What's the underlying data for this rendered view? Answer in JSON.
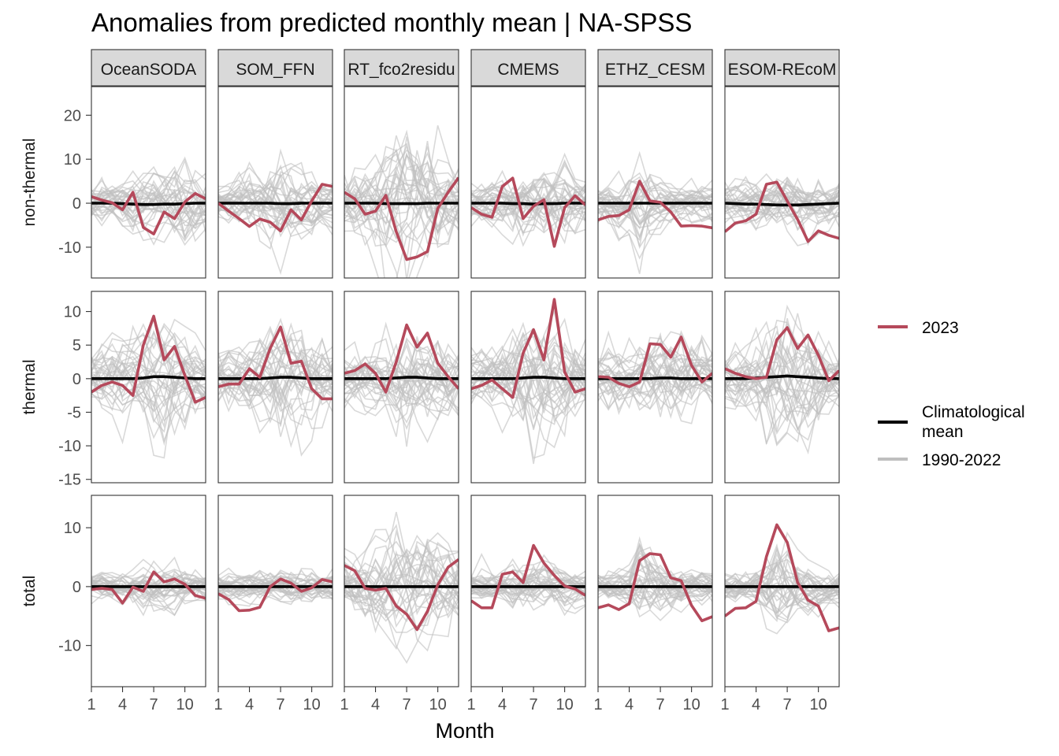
{
  "chart_data": {
    "type": "line",
    "title": "Anomalies from predicted monthly mean | NA-SPSS",
    "xlabel": "Month",
    "x_ticks": [
      1,
      4,
      7,
      10
    ],
    "x_range": [
      1,
      12
    ],
    "columns": [
      "OceanSODA",
      "SOM_FFN",
      "RT_fco2residu",
      "CMEMS",
      "ETHZ_CESM",
      "ESOM-REcoM"
    ],
    "rows": [
      {
        "label": "non-thermal",
        "ylim": [
          -17,
          26.5
        ],
        "y_ticks": [
          20,
          10,
          0,
          -10
        ]
      },
      {
        "label": "thermal",
        "ylim": [
          -15.5,
          13
        ],
        "y_ticks": [
          10,
          5,
          0,
          -5,
          -10,
          -15
        ]
      },
      {
        "label": "total",
        "ylim": [
          -17,
          15.5
        ],
        "y_ticks": [
          10,
          0,
          -10
        ]
      }
    ],
    "legend": {
      "position": "right",
      "entries": [
        {
          "label": "2023",
          "color": "#b5495b"
        },
        {
          "label": "Climatological mean",
          "color": "#000000"
        },
        {
          "label": "1990-2022",
          "color": "#bfbfbf"
        }
      ]
    },
    "background_years_range": "1990-2022",
    "series_2023": {
      "non-thermal": [
        [
          1.5,
          0.7,
          0.1,
          -1.5,
          2.5,
          -5.5,
          -7.0,
          -2.0,
          -3.5,
          0.3,
          2.2,
          1.0
        ],
        [
          0.0,
          -1.8,
          -3.5,
          -5.3,
          -3.6,
          -4.3,
          -6.3,
          -1.5,
          -3.8,
          0.5,
          4.3,
          3.8
        ],
        [
          2.5,
          1.0,
          -2.5,
          -1.8,
          1.8,
          -6.5,
          -12.8,
          -12.2,
          -11.0,
          -1.2,
          2.5,
          5.8
        ],
        [
          -1.0,
          -2.5,
          -3.2,
          3.8,
          5.7,
          -3.5,
          -0.7,
          0.8,
          -9.8,
          -1.0,
          1.7,
          -0.4
        ],
        [
          -3.8,
          -3.0,
          -2.8,
          -1.5,
          5.0,
          0.5,
          0.2,
          -2.0,
          -5.2,
          -5.1,
          -5.2,
          -5.6
        ],
        [
          -6.5,
          -4.5,
          -4.0,
          -2.5,
          4.3,
          4.8,
          0.5,
          -3.7,
          -8.7,
          -6.3,
          -7.3,
          -8.0
        ]
      ],
      "thermal": [
        [
          -2.0,
          -1.0,
          -0.5,
          -1.0,
          -2.5,
          5.0,
          9.3,
          2.8,
          4.8,
          0.5,
          -3.5,
          -2.8
        ],
        [
          -1.2,
          -0.8,
          -0.8,
          1.5,
          0.2,
          4.5,
          7.7,
          2.3,
          2.6,
          -1.5,
          -3.0,
          -3.0
        ],
        [
          0.8,
          1.2,
          2.2,
          0.8,
          -2.0,
          2.5,
          8.0,
          4.7,
          6.8,
          2.3,
          0.3,
          -1.5
        ],
        [
          -1.5,
          -1.0,
          -0.2,
          -1.5,
          -2.8,
          3.8,
          7.3,
          2.8,
          11.8,
          1.0,
          -2.0,
          -1.5
        ],
        [
          0.3,
          0.2,
          -0.7,
          -1.2,
          -0.5,
          5.2,
          5.1,
          3.2,
          6.2,
          2.0,
          -0.5,
          0.8
        ],
        [
          1.5,
          0.8,
          0.3,
          0.0,
          0.2,
          5.8,
          7.6,
          4.5,
          6.5,
          3.5,
          -0.3,
          1.2
        ]
      ],
      "total": [
        [
          -0.5,
          -0.3,
          -0.5,
          -2.8,
          -0.1,
          -0.8,
          2.5,
          0.8,
          1.3,
          0.4,
          -1.5,
          -2.0
        ],
        [
          -1.2,
          -2.2,
          -4.1,
          -4.0,
          -3.5,
          0.0,
          1.3,
          0.6,
          -0.8,
          -0.2,
          1.2,
          0.8
        ],
        [
          3.6,
          2.7,
          -0.3,
          -0.6,
          -0.3,
          -3.3,
          -4.7,
          -7.3,
          -4.2,
          0.3,
          3.3,
          4.6
        ],
        [
          -2.4,
          -3.6,
          -3.6,
          2.1,
          2.5,
          0.7,
          7.0,
          4.0,
          1.9,
          0.1,
          -0.4,
          -1.5
        ],
        [
          -3.6,
          -3.1,
          -3.9,
          -2.9,
          4.4,
          5.6,
          5.4,
          1.5,
          1.0,
          -3.2,
          -5.8,
          -5.1
        ],
        [
          -5.0,
          -3.7,
          -3.6,
          -2.5,
          5.1,
          10.5,
          7.5,
          0.7,
          -2.3,
          -3.3,
          -7.5,
          -7.0
        ]
      ]
    },
    "series_climatological_mean": {
      "non-thermal": [
        [
          0.0,
          0.0,
          0.0,
          -0.1,
          -0.2,
          -0.3,
          -0.3,
          -0.2,
          -0.2,
          -0.1,
          0.0,
          0.0
        ],
        [
          0.0,
          0.0,
          0.0,
          0.0,
          0.0,
          0.0,
          -0.1,
          -0.1,
          0.0,
          0.0,
          0.0,
          0.0
        ],
        [
          0.0,
          0.0,
          0.0,
          0.0,
          -0.1,
          -0.1,
          -0.1,
          -0.1,
          0.0,
          0.0,
          0.0,
          0.0
        ],
        [
          0.0,
          0.0,
          0.0,
          0.0,
          -0.1,
          -0.1,
          -0.2,
          -0.1,
          -0.1,
          0.0,
          0.0,
          0.0
        ],
        [
          0.0,
          0.0,
          0.0,
          0.0,
          0.0,
          0.0,
          0.0,
          0.0,
          0.0,
          0.0,
          0.0,
          0.0
        ],
        [
          0.0,
          -0.1,
          -0.2,
          -0.2,
          -0.3,
          -0.4,
          -0.4,
          -0.4,
          -0.3,
          -0.2,
          -0.1,
          0.0
        ]
      ],
      "thermal": [
        [
          0.0,
          0.0,
          0.0,
          0.0,
          0.0,
          0.1,
          0.3,
          0.3,
          0.2,
          0.1,
          0.0,
          0.0
        ],
        [
          0.0,
          0.0,
          0.0,
          0.0,
          0.0,
          0.1,
          0.2,
          0.2,
          0.1,
          0.0,
          0.0,
          0.0
        ],
        [
          0.0,
          0.0,
          0.0,
          0.0,
          0.0,
          0.1,
          0.2,
          0.2,
          0.1,
          0.0,
          0.0,
          0.0
        ],
        [
          0.0,
          0.0,
          0.0,
          0.0,
          0.0,
          0.1,
          0.2,
          0.2,
          0.1,
          0.0,
          0.0,
          0.0
        ],
        [
          0.0,
          0.0,
          0.0,
          0.0,
          0.0,
          0.0,
          0.1,
          0.1,
          0.0,
          0.0,
          0.0,
          0.0
        ],
        [
          0.0,
          0.0,
          0.0,
          0.1,
          0.2,
          0.3,
          0.4,
          0.3,
          0.2,
          0.1,
          0.0,
          0.0
        ]
      ],
      "total": [
        [
          0.0,
          0.0,
          0.0,
          0.0,
          0.0,
          0.0,
          0.0,
          0.0,
          0.0,
          0.0,
          0.0,
          0.0
        ],
        [
          0.0,
          0.0,
          0.0,
          0.0,
          0.0,
          0.0,
          0.0,
          0.0,
          0.0,
          0.0,
          0.0,
          0.0
        ],
        [
          0.0,
          0.0,
          0.0,
          0.0,
          0.0,
          0.0,
          0.0,
          0.0,
          0.0,
          0.0,
          0.0,
          0.0
        ],
        [
          0.0,
          0.0,
          0.0,
          0.0,
          0.0,
          0.0,
          0.0,
          0.0,
          0.0,
          0.0,
          0.0,
          0.0
        ],
        [
          0.0,
          0.0,
          0.0,
          0.0,
          0.0,
          0.0,
          0.0,
          0.0,
          0.0,
          0.0,
          0.0,
          0.0
        ],
        [
          0.0,
          0.0,
          0.0,
          0.0,
          0.0,
          0.0,
          0.0,
          0.0,
          0.0,
          0.0,
          0.0,
          0.0
        ]
      ]
    },
    "background_envelope": {
      "non-thermal": [
        [
          5,
          5,
          5,
          6,
          7,
          8,
          9,
          8,
          10,
          12,
          9,
          6
        ],
        [
          5,
          5,
          6,
          7,
          8,
          9,
          10,
          9,
          9,
          10,
          8,
          6
        ],
        [
          8,
          9,
          10,
          12,
          14,
          16,
          20,
          18,
          16,
          14,
          10,
          8
        ],
        [
          5,
          5,
          6,
          7,
          8,
          8,
          9,
          9,
          10,
          11,
          8,
          6
        ],
        [
          5,
          5,
          6,
          7,
          13,
          7,
          6,
          5,
          5,
          5,
          5,
          5
        ],
        [
          5,
          5,
          5,
          6,
          7,
          7,
          8,
          8,
          7,
          6,
          5,
          5
        ]
      ],
      "thermal": [
        [
          5,
          5,
          6,
          6,
          7,
          9,
          10,
          10,
          9,
          8,
          6,
          5
        ],
        [
          5,
          5,
          5,
          6,
          7,
          8,
          9,
          9,
          8,
          7,
          6,
          5
        ],
        [
          5,
          5,
          5,
          6,
          7,
          8,
          9,
          9,
          8,
          7,
          6,
          5
        ],
        [
          5,
          5,
          5,
          6,
          7,
          9,
          10,
          10,
          9,
          8,
          6,
          5
        ],
        [
          5,
          5,
          5,
          5,
          6,
          7,
          8,
          8,
          7,
          6,
          5,
          5
        ],
        [
          5,
          5,
          5,
          6,
          8,
          11,
          12,
          12,
          10,
          8,
          6,
          5
        ]
      ],
      "total": [
        [
          3,
          3,
          3,
          3,
          3,
          4,
          4,
          4,
          4,
          3,
          3,
          3
        ],
        [
          3,
          3,
          3,
          3,
          3,
          3,
          3,
          3,
          3,
          3,
          3,
          3
        ],
        [
          6,
          6,
          7,
          8,
          9,
          10,
          11,
          10,
          9,
          8,
          6,
          6
        ],
        [
          3,
          3,
          3,
          3,
          4,
          4,
          5,
          5,
          4,
          4,
          3,
          3
        ],
        [
          3,
          3,
          3,
          4,
          8,
          6,
          5,
          4,
          4,
          3,
          3,
          3
        ],
        [
          3,
          3,
          3,
          4,
          7,
          10,
          9,
          6,
          5,
          4,
          3,
          3
        ]
      ]
    }
  }
}
